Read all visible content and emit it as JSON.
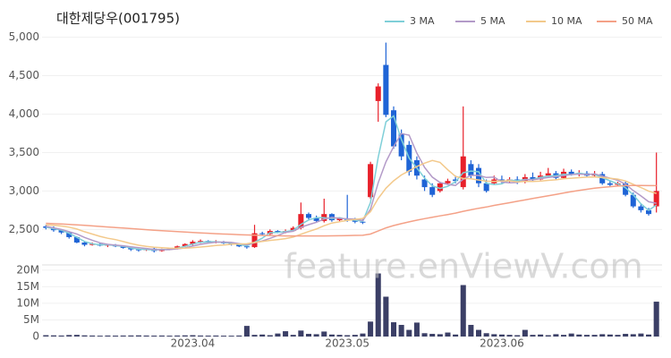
{
  "chart_data": [
    {
      "type": "candlestick",
      "title": "대한제당우(001795)",
      "legend": "top-right",
      "watermark": "feature.enViewV.com",
      "up_color": "#e8202a",
      "down_color": "#1f64d6",
      "ylim": [
        2050,
        5100
      ],
      "yticks": [
        {
          "value": 2500,
          "label": "2,500"
        },
        {
          "value": 3000,
          "label": "3,000"
        },
        {
          "value": 3500,
          "label": "3,500"
        },
        {
          "value": 4000,
          "label": "4,000"
        },
        {
          "value": 4500,
          "label": "4,500"
        },
        {
          "value": 5000,
          "label": "5,000"
        }
      ],
      "grid": true,
      "open": [
        2540,
        2520,
        2490,
        2460,
        2400,
        2330,
        2300,
        2310,
        2290,
        2300,
        2280,
        2260,
        2240,
        2230,
        2250,
        2220,
        2240,
        2250,
        2280,
        2310,
        2340,
        2350,
        2330,
        2340,
        2320,
        2310,
        2280,
        2270,
        2450,
        2440,
        2480,
        2460,
        2480,
        2520,
        2700,
        2650,
        2610,
        2700,
        2620,
        2640,
        2620,
        2600,
        2920,
        4170,
        4640,
        4050,
        3750,
        3600,
        3400,
        3150,
        3050,
        3000,
        3100,
        3150,
        3050,
        3350,
        3300,
        3100,
        3100,
        3150,
        3130,
        3150,
        3120,
        3180,
        3150,
        3200,
        3230,
        3170,
        3250,
        3220,
        3230,
        3200,
        3220,
        3100,
        3080,
        3100,
        2950,
        2800,
        2750,
        2800
      ],
      "high": [
        2560,
        2540,
        2500,
        2470,
        2410,
        2340,
        2330,
        2320,
        2310,
        2310,
        2290,
        2270,
        2250,
        2260,
        2260,
        2250,
        2260,
        2290,
        2320,
        2360,
        2370,
        2360,
        2360,
        2350,
        2330,
        2320,
        2300,
        2560,
        2470,
        2500,
        2490,
        2500,
        2540,
        2850,
        2720,
        2680,
        2900,
        2710,
        2660,
        2950,
        2650,
        2640,
        3380,
        4400,
        4930,
        4100,
        3800,
        3650,
        3450,
        3200,
        3100,
        3120,
        3160,
        3200,
        4100,
        3400,
        3350,
        3150,
        3200,
        3200,
        3180,
        3190,
        3220,
        3240,
        3250,
        3300,
        3260,
        3290,
        3280,
        3270,
        3260,
        3260,
        3250,
        3130,
        3120,
        3120,
        2980,
        2830,
        2780,
        3500
      ],
      "low": [
        2500,
        2470,
        2440,
        2380,
        2320,
        2280,
        2290,
        2280,
        2270,
        2270,
        2250,
        2220,
        2210,
        2220,
        2200,
        2210,
        2230,
        2240,
        2270,
        2290,
        2320,
        2320,
        2320,
        2310,
        2290,
        2270,
        2250,
        2260,
        2420,
        2430,
        2450,
        2450,
        2470,
        2500,
        2630,
        2590,
        2590,
        2600,
        2600,
        2600,
        2580,
        2570,
        2900,
        3900,
        3960,
        3550,
        3400,
        3200,
        3150,
        3000,
        2920,
        2980,
        3080,
        3100,
        3020,
        3150,
        3050,
        2980,
        3080,
        3100,
        3110,
        3090,
        3100,
        3120,
        3140,
        3180,
        3150,
        3160,
        3200,
        3190,
        3180,
        3180,
        3080,
        3060,
        3060,
        2930,
        2780,
        2720,
        2680,
        2720
      ],
      "close": [
        2520,
        2490,
        2460,
        2400,
        2330,
        2300,
        2310,
        2290,
        2300,
        2280,
        2260,
        2240,
        2230,
        2250,
        2220,
        2240,
        2250,
        2280,
        2310,
        2340,
        2350,
        2330,
        2340,
        2320,
        2310,
        2280,
        2270,
        2450,
        2440,
        2480,
        2460,
        2480,
        2520,
        2700,
        2650,
        2610,
        2700,
        2620,
        2640,
        2620,
        2600,
        2600,
        3350,
        4360,
        3990,
        3580,
        3450,
        3250,
        3200,
        3050,
        2950,
        3100,
        3130,
        3130,
        3450,
        3200,
        3100,
        3000,
        3150,
        3130,
        3150,
        3120,
        3180,
        3150,
        3200,
        3230,
        3170,
        3250,
        3220,
        3230,
        3200,
        3220,
        3100,
        3080,
        3100,
        2950,
        2800,
        2750,
        2700,
        3000
      ],
      "series": [
        {
          "name": "3 MA",
          "color": "#7fcfd8",
          "values": [
            2530,
            2510,
            2490,
            2450,
            2397,
            2343,
            2313,
            2300,
            2300,
            2290,
            2280,
            2260,
            2243,
            2240,
            2233,
            2237,
            2237,
            2257,
            2280,
            2310,
            2333,
            2340,
            2340,
            2330,
            2323,
            2303,
            2287,
            2333,
            2387,
            2457,
            2460,
            2473,
            2487,
            2567,
            2623,
            2653,
            2653,
            2643,
            2653,
            2627,
            2620,
            2607,
            2850,
            3437,
            3900,
            3977,
            3673,
            3427,
            3300,
            3167,
            3067,
            3033,
            3060,
            3120,
            3237,
            3260,
            3250,
            3100,
            3083,
            3093,
            3143,
            3133,
            3150,
            3150,
            3177,
            3193,
            3200,
            3217,
            3213,
            3233,
            3217,
            3217,
            3173,
            3133,
            3093,
            3043,
            2950,
            2833,
            2750,
            2817
          ]
        },
        {
          "name": "5 MA",
          "color": "#b39ac8",
          "values": [
            2540,
            2520,
            2500,
            2470,
            2440,
            2396,
            2360,
            2326,
            2306,
            2296,
            2288,
            2274,
            2262,
            2252,
            2240,
            2236,
            2238,
            2248,
            2260,
            2284,
            2306,
            2322,
            2334,
            2336,
            2330,
            2316,
            2302,
            2326,
            2350,
            2384,
            2420,
            2462,
            2476,
            2528,
            2562,
            2592,
            2636,
            2656,
            2644,
            2638,
            2636,
            2616,
            2762,
            3106,
            3380,
            3576,
            3746,
            3726,
            3494,
            3306,
            3180,
            3110,
            3086,
            3072,
            3152,
            3202,
            3202,
            3176,
            3180,
            3116,
            3106,
            3110,
            3146,
            3146,
            3160,
            3176,
            3186,
            3200,
            3214,
            3220,
            3214,
            3224,
            3194,
            3166,
            3140,
            3090,
            3006,
            2936,
            2860,
            2840
          ]
        },
        {
          "name": "10 MA",
          "color": "#f3c98b",
          "values": [
            2560,
            2555,
            2545,
            2530,
            2505,
            2470,
            2440,
            2410,
            2385,
            2368,
            2342,
            2317,
            2294,
            2279,
            2268,
            2262,
            2256,
            2255,
            2256,
            2262,
            2271,
            2280,
            2291,
            2298,
            2307,
            2311,
            2313,
            2330,
            2343,
            2357,
            2368,
            2381,
            2400,
            2438,
            2472,
            2505,
            2548,
            2583,
            2601,
            2617,
            2631,
            2643,
            2731,
            2902,
            3036,
            3133,
            3208,
            3263,
            3319,
            3362,
            3397,
            3372,
            3276,
            3190,
            3163,
            3158,
            3143,
            3128,
            3123,
            3131,
            3133,
            3118,
            3123,
            3125,
            3128,
            3139,
            3146,
            3159,
            3166,
            3173,
            3180,
            3183,
            3175,
            3165,
            3155,
            3130,
            3087,
            3045,
            2998,
            2968
          ]
        },
        {
          "name": "50 MA",
          "color": "#f4a187",
          "values": [
            2580,
            2575,
            2570,
            2565,
            2560,
            2553,
            2546,
            2539,
            2532,
            2525,
            2518,
            2511,
            2504,
            2497,
            2490,
            2484,
            2478,
            2472,
            2466,
            2460,
            2455,
            2450,
            2445,
            2440,
            2436,
            2432,
            2428,
            2425,
            2422,
            2420,
            2418,
            2416,
            2415,
            2415,
            2415,
            2415,
            2416,
            2417,
            2418,
            2420,
            2422,
            2424,
            2440,
            2480,
            2520,
            2550,
            2575,
            2598,
            2620,
            2640,
            2658,
            2676,
            2694,
            2712,
            2736,
            2756,
            2775,
            2792,
            2812,
            2830,
            2848,
            2866,
            2884,
            2902,
            2920,
            2938,
            2956,
            2974,
            2992,
            3008,
            3022,
            3036,
            3046,
            3056,
            3064,
            3070,
            3072,
            3072,
            3070,
            3070
          ]
        }
      ]
    },
    {
      "type": "bar",
      "color": "#3b3f66",
      "ylim": [
        0,
        21300000
      ],
      "yticks": [
        0,
        {
          "value": 5000000,
          "label": "5M"
        },
        {
          "value": 10000000,
          "label": "10M"
        },
        {
          "value": 15000000,
          "label": "15M"
        },
        {
          "value": 20000000,
          "label": "20M"
        }
      ],
      "categories": [
        null,
        null,
        null,
        null,
        null,
        null,
        null,
        null,
        null,
        null,
        null,
        null,
        null,
        null,
        null,
        null,
        null,
        null,
        null,
        "2023.04",
        null,
        null,
        null,
        null,
        null,
        null,
        null,
        null,
        null,
        null,
        null,
        null,
        null,
        null,
        null,
        null,
        null,
        null,
        null,
        "2023.05",
        null,
        null,
        null,
        null,
        null,
        null,
        null,
        null,
        null,
        null,
        null,
        null,
        null,
        null,
        null,
        null,
        null,
        null,
        null,
        "2023.06",
        null,
        null,
        null,
        null,
        null,
        null,
        null,
        null,
        null,
        null,
        null,
        null,
        null,
        null,
        null,
        null,
        null,
        null,
        null,
        null
      ],
      "values": [
        400000,
        350000,
        300000,
        450000,
        500000,
        350000,
        300000,
        250000,
        300000,
        280000,
        300000,
        320000,
        350000,
        300000,
        280000,
        300000,
        260000,
        300000,
        350000,
        400000,
        300000,
        280000,
        300000,
        260000,
        250000,
        300000,
        3200000,
        500000,
        600000,
        400000,
        900000,
        1600000,
        500000,
        1800000,
        800000,
        700000,
        1500000,
        600000,
        500000,
        400000,
        500000,
        900000,
        4500000,
        19000000,
        12000000,
        4300000,
        3500000,
        2000000,
        4200000,
        1000000,
        800000,
        700000,
        1200000,
        600000,
        15500000,
        3500000,
        2000000,
        1000000,
        700000,
        600000,
        500000,
        400000,
        2000000,
        500000,
        600000,
        400000,
        700000,
        500000,
        900000,
        600000,
        500000,
        500000,
        700000,
        600000,
        500000,
        800000,
        700000,
        900000,
        600000,
        10500000
      ]
    }
  ]
}
